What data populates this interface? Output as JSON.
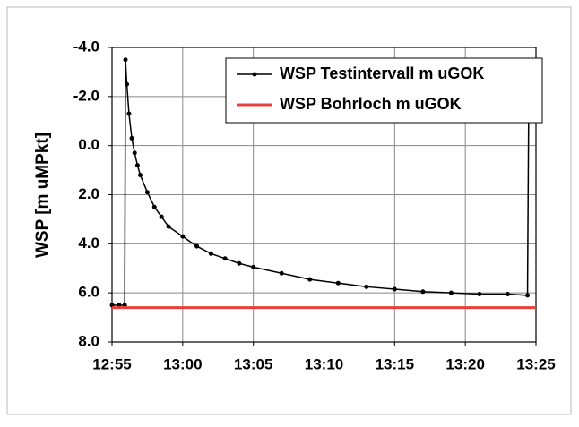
{
  "chart_data": {
    "type": "line",
    "y_label": "WSP [m uMPkt]",
    "x": [
      "12:55:00",
      "12:55:30",
      "12:55:54",
      "12:55:57",
      "12:56:03",
      "12:56:12",
      "12:56:24",
      "12:56:36",
      "12:56:48",
      "12:57:00",
      "12:57:30",
      "12:58:00",
      "12:58:30",
      "12:59:00",
      "13:00:00",
      "13:01:00",
      "13:02:00",
      "13:03:00",
      "13:04:00",
      "13:05:00",
      "13:07:00",
      "13:09:00",
      "13:11:00",
      "13:13:00",
      "13:15:00",
      "13:17:00",
      "13:19:00",
      "13:21:00",
      "13:23:00",
      "13:24:24",
      "13:24:30"
    ],
    "series": [
      {
        "name": "WSP Testintervall m uGOK",
        "color": "#000000",
        "markers": true,
        "values": [
          6.5,
          6.5,
          6.5,
          -3.5,
          -2.5,
          -1.3,
          -0.3,
          0.3,
          0.8,
          1.2,
          1.9,
          2.5,
          2.9,
          3.3,
          3.7,
          4.1,
          4.4,
          4.6,
          4.8,
          4.95,
          5.2,
          5.45,
          5.6,
          5.75,
          5.85,
          5.95,
          6.0,
          6.05,
          6.05,
          6.1,
          -3.0
        ]
      },
      {
        "name": "WSP Bohrloch m uGOK",
        "color": "#e8403a",
        "markers": false,
        "x": [
          "12:55:00",
          "13:25:00"
        ],
        "values": [
          6.6,
          6.6
        ]
      }
    ],
    "xlim": [
      "12:55",
      "13:25"
    ],
    "xticks": [
      "12:55",
      "13:00",
      "13:05",
      "13:10",
      "13:15",
      "13:20",
      "13:25"
    ],
    "ylim": [
      -4,
      8
    ],
    "y_inverted": true,
    "yticks": [
      {
        "value": -4,
        "label": "-4.0"
      },
      {
        "value": -2,
        "label": "-2.0"
      },
      {
        "value": 0,
        "label": "0.0"
      },
      {
        "value": 2,
        "label": "2.0"
      },
      {
        "value": 4,
        "label": "4.0"
      },
      {
        "value": 6,
        "label": "6.0"
      },
      {
        "value": 8,
        "label": "8.0"
      }
    ],
    "grid": true,
    "legend": "top-right"
  }
}
